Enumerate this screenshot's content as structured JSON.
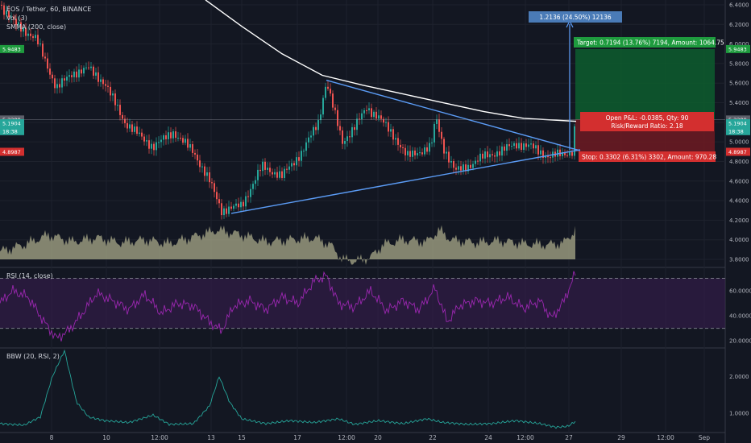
{
  "legends": {
    "main": "EOS / Tether, 60, BINANCE",
    "vol": "Vol (3)",
    "smma": "SMMA (200, close)",
    "rsi": "RSI (14, close)",
    "bbw": "BBW (20, RSI, 2)"
  },
  "colors": {
    "background": "#131722",
    "up": "#26a69a",
    "down": "#ef5350",
    "smma": "#ffffff",
    "trendline": "#5b9cf6",
    "volume": "#a9a98a",
    "rsi": "#9b27b0",
    "bbw": "#26a69a",
    "target_zone": "#0d5d2e",
    "stop_zone": "#6e1a22"
  },
  "chart_data": [
    {
      "type": "line",
      "name": "price_panel",
      "ylim": [
        3.7,
        6.45
      ],
      "y_ticks": [
        "6.4000",
        "6.2000",
        "6.0000",
        "5.8000",
        "5.6000",
        "5.4000",
        "5.2000",
        "5.0000",
        "4.8000",
        "4.6000",
        "4.4000",
        "4.2000",
        "4.0000",
        "3.8000"
      ],
      "x_ticks": [
        "8",
        "10",
        "12:00",
        "13",
        "15",
        "17",
        "12:00",
        "20",
        "22",
        "24",
        "12:00",
        "27",
        "29",
        "12:00",
        "Sep"
      ],
      "price_path": [
        [
          0,
          6.4
        ],
        [
          20,
          6.2
        ],
        [
          45,
          6.05
        ],
        [
          70,
          5.55
        ],
        [
          90,
          5.7
        ],
        [
          110,
          5.75
        ],
        [
          130,
          5.6
        ],
        [
          155,
          5.2
        ],
        [
          175,
          5.05
        ],
        [
          190,
          4.95
        ],
        [
          215,
          5.1
        ],
        [
          240,
          4.9
        ],
        [
          260,
          4.6
        ],
        [
          275,
          4.3
        ],
        [
          300,
          4.35
        ],
        [
          325,
          4.75
        ],
        [
          350,
          4.65
        ],
        [
          375,
          4.9
        ],
        [
          395,
          5.2
        ],
        [
          405,
          5.62
        ],
        [
          415,
          5.3
        ],
        [
          425,
          5.0
        ],
        [
          440,
          5.15
        ],
        [
          455,
          5.35
        ],
        [
          470,
          5.25
        ],
        [
          490,
          5.05
        ],
        [
          505,
          4.85
        ],
        [
          520,
          4.9
        ],
        [
          535,
          4.95
        ],
        [
          541,
          5.25
        ],
        [
          550,
          4.95
        ],
        [
          565,
          4.7
        ],
        [
          580,
          4.75
        ],
        [
          600,
          4.85
        ],
        [
          620,
          4.9
        ],
        [
          640,
          4.98
        ],
        [
          660,
          4.95
        ],
        [
          680,
          4.85
        ],
        [
          700,
          4.88
        ],
        [
          710,
          4.9
        ],
        [
          714,
          5.2
        ]
      ],
      "smma": [
        [
          255,
          6.45
        ],
        [
          300,
          6.18
        ],
        [
          350,
          5.9
        ],
        [
          400,
          5.68
        ],
        [
          450,
          5.58
        ],
        [
          500,
          5.49
        ],
        [
          550,
          5.4
        ],
        [
          600,
          5.31
        ],
        [
          650,
          5.24
        ],
        [
          715,
          5.21
        ]
      ],
      "triangle": {
        "upper": [
          [
            405,
            5.63
          ],
          [
            720,
            4.91
          ]
        ],
        "lower": [
          [
            287,
            4.27
          ],
          [
            720,
            4.92
          ]
        ]
      },
      "markers": [
        {
          "label": "5.9483",
          "value": 5.9483,
          "color": "#1e9b3e"
        },
        {
          "label": "5.2289",
          "value": 5.2289,
          "color": "#5d606b"
        },
        {
          "label": "5.1904",
          "value": 5.1904,
          "color": "#26a69a"
        },
        {
          "label": "18:38",
          "value": 5.11,
          "color": "#26a69a"
        },
        {
          "label": "4.8987",
          "value": 4.8987,
          "color": "#d32f2f"
        }
      ],
      "position": {
        "target": "Target: 0.7194 (13.76%) 7194, Amount: 1064.75",
        "open_pl": "Open P&L: -0.0385, Qty: 90",
        "risk_reward": "Risk/Reward Ratio: 2.18",
        "stop": "Stop: 0.3302 (6.31%) 3302, Amount: 970.28",
        "measure": "1.2136 (24.50%) 12136",
        "entry": 5.2289,
        "target_price": 5.9483,
        "stop_price": 4.8987
      }
    },
    {
      "type": "area",
      "name": "volume",
      "values_path": [
        [
          0,
          3.88
        ],
        [
          30,
          3.95
        ],
        [
          60,
          4.05
        ],
        [
          90,
          3.98
        ],
        [
          120,
          4.02
        ],
        [
          150,
          3.97
        ],
        [
          180,
          4.0
        ],
        [
          210,
          3.96
        ],
        [
          240,
          4.03
        ],
        [
          270,
          4.1
        ],
        [
          300,
          4.05
        ],
        [
          330,
          3.98
        ],
        [
          360,
          4.0
        ],
        [
          390,
          4.02
        ],
        [
          410,
          3.95
        ],
        [
          425,
          3.8
        ],
        [
          440,
          3.78
        ],
        [
          460,
          3.82
        ],
        [
          475,
          3.95
        ],
        [
          500,
          4.0
        ],
        [
          530,
          3.98
        ],
        [
          545,
          4.1
        ],
        [
          560,
          4.0
        ],
        [
          590,
          3.97
        ],
        [
          620,
          3.99
        ],
        [
          650,
          3.96
        ],
        [
          680,
          3.95
        ],
        [
          700,
          3.97
        ],
        [
          714,
          4.1
        ]
      ]
    },
    {
      "type": "line",
      "name": "rsi",
      "ylim": [
        15,
        78
      ],
      "y_ticks": [
        "60.0000",
        "40.0000",
        "20.0000"
      ],
      "bands": [
        70,
        30
      ],
      "values_path": [
        [
          0,
          50
        ],
        [
          15,
          60
        ],
        [
          35,
          55
        ],
        [
          55,
          35
        ],
        [
          70,
          22
        ],
        [
          85,
          28
        ],
        [
          100,
          40
        ],
        [
          120,
          58
        ],
        [
          140,
          52
        ],
        [
          160,
          45
        ],
        [
          180,
          57
        ],
        [
          200,
          42
        ],
        [
          220,
          50
        ],
        [
          240,
          48
        ],
        [
          260,
          35
        ],
        [
          275,
          28
        ],
        [
          290,
          48
        ],
        [
          310,
          52
        ],
        [
          330,
          45
        ],
        [
          350,
          55
        ],
        [
          370,
          50
        ],
        [
          390,
          68
        ],
        [
          405,
          72
        ],
        [
          420,
          50
        ],
        [
          440,
          47
        ],
        [
          460,
          60
        ],
        [
          480,
          44
        ],
        [
          500,
          52
        ],
        [
          520,
          45
        ],
        [
          540,
          62
        ],
        [
          555,
          35
        ],
        [
          570,
          48
        ],
        [
          590,
          52
        ],
        [
          610,
          50
        ],
        [
          630,
          55
        ],
        [
          650,
          46
        ],
        [
          670,
          52
        ],
        [
          685,
          38
        ],
        [
          700,
          52
        ],
        [
          714,
          74
        ]
      ]
    },
    {
      "type": "line",
      "name": "bbw",
      "ylim": [
        0.5,
        2.75
      ],
      "y_ticks": [
        "2.0000",
        "1.0000"
      ],
      "values_path": [
        [
          0,
          0.72
        ],
        [
          30,
          0.68
        ],
        [
          50,
          0.9
        ],
        [
          65,
          2.0
        ],
        [
          80,
          2.7
        ],
        [
          95,
          1.3
        ],
        [
          110,
          0.9
        ],
        [
          130,
          0.8
        ],
        [
          160,
          0.75
        ],
        [
          190,
          0.95
        ],
        [
          210,
          0.7
        ],
        [
          240,
          0.72
        ],
        [
          260,
          1.2
        ],
        [
          272,
          2.0
        ],
        [
          285,
          1.3
        ],
        [
          300,
          0.85
        ],
        [
          330,
          0.72
        ],
        [
          360,
          0.8
        ],
        [
          390,
          0.75
        ],
        [
          420,
          0.85
        ],
        [
          440,
          0.7
        ],
        [
          470,
          0.8
        ],
        [
          500,
          0.72
        ],
        [
          530,
          0.85
        ],
        [
          550,
          0.75
        ],
        [
          580,
          0.7
        ],
        [
          610,
          0.72
        ],
        [
          640,
          0.8
        ],
        [
          670,
          0.72
        ],
        [
          690,
          0.62
        ],
        [
          705,
          0.65
        ],
        [
          714,
          0.78
        ]
      ]
    }
  ]
}
